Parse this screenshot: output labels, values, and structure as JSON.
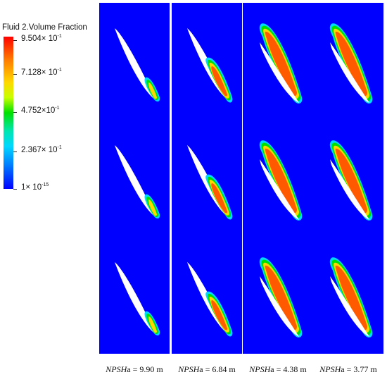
{
  "legend": {
    "title": "Fluid 2.Volume Fraction",
    "ticks": [
      {
        "base": "9.504× 10",
        "exp": "-1"
      },
      {
        "base": "7.128× 10",
        "exp": "-1"
      },
      {
        "base": "4.752×10",
        "exp": "-1"
      },
      {
        "base": "2.367× 10",
        "exp": "-1"
      },
      {
        "base": "1× 10",
        "exp": "-15"
      }
    ],
    "colors": [
      "#ff0000",
      "#ff7a00",
      "#ffd800",
      "#c8ff00",
      "#00e000",
      "#00e6b0",
      "#00d8ff",
      "#0078ff",
      "#0000ff"
    ]
  },
  "panels": [
    {
      "italic": "NPSH",
      "rest": "a = 9.90 m",
      "cavity": "small"
    },
    {
      "italic": "NPSH",
      "rest": "a = 6.84 m",
      "cavity": "medium"
    },
    {
      "italic": "NPSH",
      "rest": "a = 4.38 m",
      "cavity": "large"
    },
    {
      "italic": "NPSH",
      "rest": "a = 3.77 m",
      "cavity": "large"
    }
  ],
  "background_color": "#0000ff"
}
